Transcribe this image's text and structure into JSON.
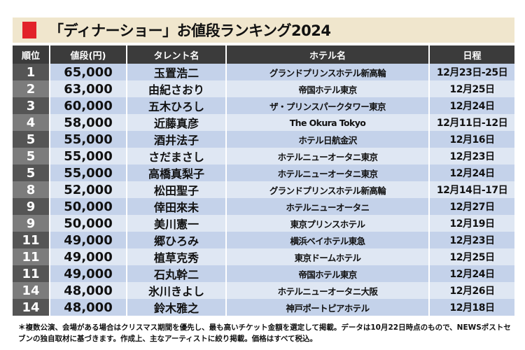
{
  "title": "「ディナーショー」お値段ランキング2024",
  "colors": {
    "accent": "#e2222a",
    "title_bg": "#f0e6cd",
    "header_bg": "#3b3b3b",
    "row_blue": "#c4d2ea",
    "row_light": "#dfe7f3"
  },
  "headers": [
    "順位",
    "値段(円)",
    "タレント名",
    "ホテル名",
    "日程"
  ],
  "rows": [
    {
      "rank": "1",
      "price": "65,000",
      "talent": "玉置浩二",
      "hotel": "グランドプリンスホテル新高輪",
      "date": "12月23日-25日"
    },
    {
      "rank": "2",
      "price": "63,000",
      "talent": "由紀さおり",
      "hotel": "帝国ホテル東京",
      "date": "12月25日"
    },
    {
      "rank": "3",
      "price": "60,000",
      "talent": "五木ひろし",
      "hotel": "ザ・プリンスパークタワー東京",
      "date": "12月24日"
    },
    {
      "rank": "4",
      "price": "58,000",
      "talent": "近藤真彦",
      "hotel": "The Okura Tokyo",
      "date": "12月11日-12日"
    },
    {
      "rank": "5",
      "price": "55,000",
      "talent": "酒井法子",
      "hotel": "ホテル日航金沢",
      "date": "12月16日"
    },
    {
      "rank": "5",
      "price": "55,000",
      "talent": "さだまさし",
      "hotel": "ホテルニューオータニ東京",
      "date": "12月23日"
    },
    {
      "rank": "5",
      "price": "55,000",
      "talent": "高橋真梨子",
      "hotel": "ホテルニューオータニ東京",
      "date": "12月24日"
    },
    {
      "rank": "8",
      "price": "52,000",
      "talent": "松田聖子",
      "hotel": "グランドプリンスホテル新高輪",
      "date": "12月14日-17日"
    },
    {
      "rank": "9",
      "price": "50,000",
      "talent": "倖田來未",
      "hotel": "ホテルニューオータニ",
      "date": "12月27日"
    },
    {
      "rank": "9",
      "price": "50,000",
      "talent": "美川憲一",
      "hotel": "東京プリンスホテル",
      "date": "12月19日"
    },
    {
      "rank": "11",
      "price": "49,000",
      "talent": "郷ひろみ",
      "hotel": "横浜ベイホテル東急",
      "date": "12月23日"
    },
    {
      "rank": "11",
      "price": "49,000",
      "talent": "植草克秀",
      "hotel": "東京ドームホテル",
      "date": "12月25日"
    },
    {
      "rank": "11",
      "price": "49,000",
      "talent": "石丸幹二",
      "hotel": "帝国ホテル東京",
      "date": "12月24日"
    },
    {
      "rank": "14",
      "price": "48,000",
      "talent": "氷川きよし",
      "hotel": "ホテルニューオータニ大阪",
      "date": "12月26日"
    },
    {
      "rank": "14",
      "price": "48,000",
      "talent": "鈴木雅之",
      "hotel": "神戸ポートピアホテル",
      "date": "12月18日"
    }
  ],
  "footnote": "＊複数公演、会場がある場合はクリスマス期間を優先し、最も高いチケット金額を選定して掲載。データは10月22日時点のもので、NEWSポストセブンの独自取材に基づきます。作成上、主なアーティストに絞り掲載。価格はすべて税込。"
}
